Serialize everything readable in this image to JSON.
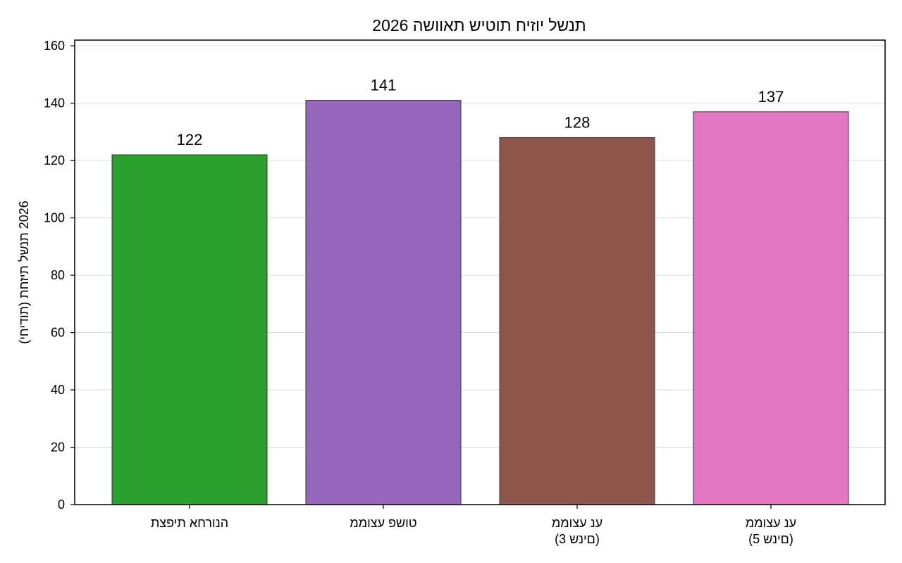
{
  "chart_data": {
    "type": "bar",
    "title": "2026 תנשל יוזיח תוטיש תאוושה",
    "xlabel": "",
    "ylabel": "(תודיחי) 2026 תנשל תיזחת",
    "categories": [
      [
        "הנורחא תיפצת"
      ],
      [
        "טושפ עצוממ"
      ],
      [
        "ענ עצוממ",
        "(םינש 3)"
      ],
      [
        "ענ עצוממ",
        "(םינש 5)"
      ]
    ],
    "values": [
      122,
      141,
      128,
      137
    ],
    "value_labels": [
      "122",
      "141",
      "128",
      "137"
    ],
    "colors": [
      "#2ca02c",
      "#9467bd",
      "#8c564b",
      "#e377c2"
    ],
    "ylim": [
      0,
      162
    ],
    "yticks": [
      0,
      20,
      40,
      60,
      80,
      100,
      120,
      140,
      160
    ],
    "grid": "y"
  }
}
